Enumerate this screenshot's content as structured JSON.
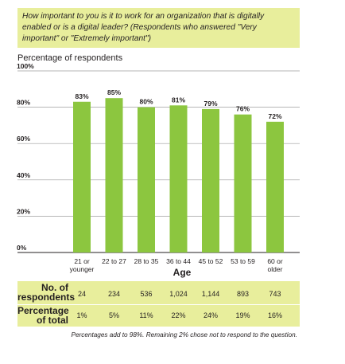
{
  "question": "How important to you is it to work for an organization that is digitally enabled or is a digital leader? (Respondents who answered \"Very important\" or \"Extremely important\")",
  "chart_data": {
    "type": "bar",
    "ylabel": "Percentage of respondents",
    "xlabel": "Age",
    "ylim": [
      0,
      100
    ],
    "yticks": [
      "0%",
      "20%",
      "40%",
      "60%",
      "80%",
      "100%"
    ],
    "categories": [
      [
        "21 or",
        "younger"
      ],
      [
        "22 to 27"
      ],
      [
        "28 to 35"
      ],
      [
        "36 to 44"
      ],
      [
        "45 to 52"
      ],
      [
        "53 to 59"
      ],
      [
        "60 or",
        "older"
      ]
    ],
    "values": [
      83,
      85,
      80,
      81,
      79,
      76,
      72
    ],
    "value_labels": [
      "83%",
      "85%",
      "80%",
      "81%",
      "79%",
      "76%",
      "72%"
    ],
    "bar_color": "#8cc63f",
    "grid": true
  },
  "table": {
    "row1_label_line1": "No. of",
    "row1_label_line2": "respondents",
    "row2_label_line1": "Percentage",
    "row2_label_line2": "of total",
    "respondents": [
      "24",
      "234",
      "536",
      "1,024",
      "1,144",
      "893",
      "743"
    ],
    "percent_of_total": [
      "1%",
      "5%",
      "11%",
      "22%",
      "24%",
      "19%",
      "16%"
    ]
  },
  "footnote": "Percentages add to 98%. Remaining 2% chose not to respond to the question."
}
